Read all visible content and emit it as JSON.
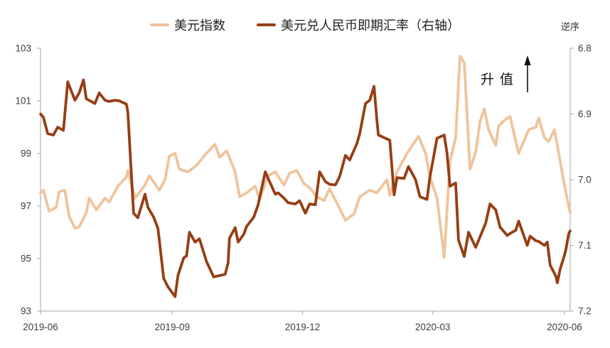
{
  "legend": {
    "items": [
      {
        "id": "usd-index",
        "label": "美元指数",
        "color": "#EFC49C"
      },
      {
        "id": "usdcny",
        "label": "美元兑人民币即期汇率（右轴）",
        "color": "#963E14"
      }
    ]
  },
  "annotations": {
    "reverse_axis_note": "逆序",
    "appreciation_label": "升值"
  },
  "chart_data": {
    "type": "line",
    "title": "",
    "xlabel": "",
    "ylabel_left": "",
    "ylabel_right": "",
    "grid": false,
    "legend_position": "top-center",
    "left_axis": {
      "range": [
        93,
        103
      ],
      "ticks": [
        "103",
        "101",
        "99",
        "97",
        "95",
        "93"
      ],
      "tick_values": [
        103,
        101,
        99,
        97,
        95,
        93
      ]
    },
    "right_axis": {
      "range": [
        6.8,
        7.2
      ],
      "reversed": true,
      "ticks": [
        "6.8",
        "6.9",
        "7.0",
        "7.1",
        "7.2"
      ],
      "tick_values": [
        6.8,
        6.9,
        7.0,
        7.1,
        7.2
      ]
    },
    "x_axis": {
      "domain": [
        "2019-06-01",
        "2020-06-05"
      ],
      "tick_labels": [
        "2019-06",
        "2019-09",
        "2019-12",
        "2020-03",
        "2020-06"
      ],
      "tick_dates": [
        "2019-06-01",
        "2019-09-01",
        "2019-12-01",
        "2020-03-01",
        "2020-06-01"
      ]
    },
    "series": [
      {
        "name": "美元指数",
        "axis": "left",
        "color": "#EFC49C",
        "points": [
          [
            "2019-06-01",
            97.5
          ],
          [
            "2019-06-03",
            97.6
          ],
          [
            "2019-06-07",
            96.8
          ],
          [
            "2019-06-12",
            96.95
          ],
          [
            "2019-06-14",
            97.55
          ],
          [
            "2019-06-18",
            97.6
          ],
          [
            "2019-06-21",
            96.6
          ],
          [
            "2019-06-25",
            96.15
          ],
          [
            "2019-06-28",
            96.2
          ],
          [
            "2019-07-03",
            96.75
          ],
          [
            "2019-07-05",
            97.3
          ],
          [
            "2019-07-10",
            96.85
          ],
          [
            "2019-07-16",
            97.3
          ],
          [
            "2019-07-19",
            97.15
          ],
          [
            "2019-07-25",
            97.75
          ],
          [
            "2019-07-31",
            98.1
          ],
          [
            "2019-08-01",
            98.35
          ],
          [
            "2019-08-06",
            97.3
          ],
          [
            "2019-08-09",
            97.5
          ],
          [
            "2019-08-13",
            97.8
          ],
          [
            "2019-08-16",
            98.15
          ],
          [
            "2019-08-23",
            97.6
          ],
          [
            "2019-08-27",
            98.0
          ],
          [
            "2019-08-30",
            98.9
          ],
          [
            "2019-09-03",
            99.0
          ],
          [
            "2019-09-06",
            98.4
          ],
          [
            "2019-09-12",
            98.3
          ],
          [
            "2019-09-18",
            98.55
          ],
          [
            "2019-09-24",
            98.95
          ],
          [
            "2019-10-01",
            99.35
          ],
          [
            "2019-10-04",
            98.85
          ],
          [
            "2019-10-09",
            99.1
          ],
          [
            "2019-10-15",
            98.3
          ],
          [
            "2019-10-18",
            97.35
          ],
          [
            "2019-10-23",
            97.5
          ],
          [
            "2019-10-29",
            97.75
          ],
          [
            "2019-11-01",
            97.25
          ],
          [
            "2019-11-07",
            98.15
          ],
          [
            "2019-11-12",
            98.3
          ],
          [
            "2019-11-18",
            97.8
          ],
          [
            "2019-11-22",
            98.25
          ],
          [
            "2019-11-27",
            98.35
          ],
          [
            "2019-12-02",
            97.85
          ],
          [
            "2019-12-06",
            97.7
          ],
          [
            "2019-12-11",
            97.35
          ],
          [
            "2019-12-16",
            97.2
          ],
          [
            "2019-12-20",
            97.65
          ],
          [
            "2019-12-27",
            96.9
          ],
          [
            "2019-12-31",
            96.45
          ],
          [
            "2020-01-06",
            96.7
          ],
          [
            "2020-01-10",
            97.35
          ],
          [
            "2020-01-17",
            97.6
          ],
          [
            "2020-01-22",
            97.5
          ],
          [
            "2020-01-29",
            98.0
          ],
          [
            "2020-01-31",
            97.4
          ],
          [
            "2020-02-05",
            98.3
          ],
          [
            "2020-02-12",
            99.0
          ],
          [
            "2020-02-20",
            99.65
          ],
          [
            "2020-02-25",
            99.0
          ],
          [
            "2020-02-28",
            98.1
          ],
          [
            "2020-03-04",
            97.3
          ],
          [
            "2020-03-09",
            95.05
          ],
          [
            "2020-03-13",
            98.7
          ],
          [
            "2020-03-17",
            99.6
          ],
          [
            "2020-03-20",
            102.7
          ],
          [
            "2020-03-23",
            102.45
          ],
          [
            "2020-03-27",
            98.4
          ],
          [
            "2020-03-31",
            99.05
          ],
          [
            "2020-04-03",
            100.2
          ],
          [
            "2020-04-06",
            100.7
          ],
          [
            "2020-04-09",
            99.9
          ],
          [
            "2020-04-14",
            99.3
          ],
          [
            "2020-04-16",
            100.05
          ],
          [
            "2020-04-21",
            100.3
          ],
          [
            "2020-04-24",
            100.4
          ],
          [
            "2020-04-30",
            99.0
          ],
          [
            "2020-05-07",
            99.9
          ],
          [
            "2020-05-12",
            100.0
          ],
          [
            "2020-05-14",
            100.35
          ],
          [
            "2020-05-18",
            99.6
          ],
          [
            "2020-05-21",
            99.45
          ],
          [
            "2020-05-25",
            99.9
          ],
          [
            "2020-05-28",
            99.0
          ],
          [
            "2020-06-01",
            97.8
          ],
          [
            "2020-06-03",
            97.25
          ],
          [
            "2020-06-05",
            96.75
          ]
        ]
      },
      {
        "name": "美元兑人民币即期汇率（右轴）",
        "axis": "right",
        "color": "#963E14",
        "points": [
          [
            "2019-06-01",
            6.9
          ],
          [
            "2019-06-03",
            6.905
          ],
          [
            "2019-06-06",
            6.93
          ],
          [
            "2019-06-10",
            6.932
          ],
          [
            "2019-06-13",
            6.92
          ],
          [
            "2019-06-17",
            6.925
          ],
          [
            "2019-06-20",
            6.851
          ],
          [
            "2019-06-25",
            6.879
          ],
          [
            "2019-06-28",
            6.868
          ],
          [
            "2019-07-01",
            6.848
          ],
          [
            "2019-07-03",
            6.877
          ],
          [
            "2019-07-09",
            6.884
          ],
          [
            "2019-07-12",
            6.868
          ],
          [
            "2019-07-16",
            6.879
          ],
          [
            "2019-07-19",
            6.881
          ],
          [
            "2019-07-23",
            6.879
          ],
          [
            "2019-07-26",
            6.88
          ],
          [
            "2019-07-31",
            6.885
          ],
          [
            "2019-08-01",
            6.897
          ],
          [
            "2019-08-05",
            7.051
          ],
          [
            "2019-08-08",
            7.058
          ],
          [
            "2019-08-13",
            7.022
          ],
          [
            "2019-08-15",
            7.042
          ],
          [
            "2019-08-19",
            7.057
          ],
          [
            "2019-08-22",
            7.074
          ],
          [
            "2019-08-23",
            7.092
          ],
          [
            "2019-08-26",
            7.15
          ],
          [
            "2019-08-29",
            7.163
          ],
          [
            "2019-09-03",
            7.178
          ],
          [
            "2019-09-05",
            7.146
          ],
          [
            "2019-09-09",
            7.119
          ],
          [
            "2019-09-11",
            7.116
          ],
          [
            "2019-09-13",
            7.08
          ],
          [
            "2019-09-17",
            7.095
          ],
          [
            "2019-09-20",
            7.09
          ],
          [
            "2019-09-25",
            7.125
          ],
          [
            "2019-09-30",
            7.148
          ],
          [
            "2019-10-08",
            7.144
          ],
          [
            "2019-10-10",
            7.127
          ],
          [
            "2019-10-11",
            7.089
          ],
          [
            "2019-10-15",
            7.073
          ],
          [
            "2019-10-17",
            7.095
          ],
          [
            "2019-10-21",
            7.083
          ],
          [
            "2019-10-23",
            7.071
          ],
          [
            "2019-10-28",
            7.057
          ],
          [
            "2019-10-31",
            7.038
          ],
          [
            "2019-11-05",
            6.988
          ],
          [
            "2019-11-07",
            6.998
          ],
          [
            "2019-11-12",
            7.022
          ],
          [
            "2019-11-14",
            7.02
          ],
          [
            "2019-11-18",
            7.028
          ],
          [
            "2019-11-21",
            7.035
          ],
          [
            "2019-11-26",
            7.037
          ],
          [
            "2019-11-29",
            7.032
          ],
          [
            "2019-12-03",
            7.051
          ],
          [
            "2019-12-06",
            7.037
          ],
          [
            "2019-12-10",
            7.038
          ],
          [
            "2019-12-13",
            6.988
          ],
          [
            "2019-12-17",
            7.003
          ],
          [
            "2019-12-20",
            7.007
          ],
          [
            "2019-12-24",
            7.008
          ],
          [
            "2019-12-27",
            6.995
          ],
          [
            "2019-12-31",
            6.963
          ],
          [
            "2020-01-03",
            6.97
          ],
          [
            "2020-01-08",
            6.945
          ],
          [
            "2020-01-10",
            6.93
          ],
          [
            "2020-01-14",
            6.884
          ],
          [
            "2020-01-17",
            6.879
          ],
          [
            "2020-01-20",
            6.858
          ],
          [
            "2020-01-22",
            6.91
          ],
          [
            "2020-01-23",
            6.932
          ],
          [
            "2020-01-31",
            6.94
          ],
          [
            "2020-02-03",
            7.023
          ],
          [
            "2020-02-05",
            6.997
          ],
          [
            "2020-02-10",
            6.998
          ],
          [
            "2020-02-13",
            6.98
          ],
          [
            "2020-02-18",
            7.0
          ],
          [
            "2020-02-21",
            7.026
          ],
          [
            "2020-02-26",
            7.03
          ],
          [
            "2020-02-28",
            6.996
          ],
          [
            "2020-03-04",
            6.937
          ],
          [
            "2020-03-09",
            6.932
          ],
          [
            "2020-03-11",
            6.96
          ],
          [
            "2020-03-13",
            7.01
          ],
          [
            "2020-03-17",
            7.005
          ],
          [
            "2020-03-19",
            7.092
          ],
          [
            "2020-03-23",
            7.117
          ],
          [
            "2020-03-26",
            7.08
          ],
          [
            "2020-03-31",
            7.103
          ],
          [
            "2020-04-07",
            7.066
          ],
          [
            "2020-04-10",
            7.037
          ],
          [
            "2020-04-14",
            7.046
          ],
          [
            "2020-04-17",
            7.072
          ],
          [
            "2020-04-22",
            7.085
          ],
          [
            "2020-04-24",
            7.082
          ],
          [
            "2020-04-28",
            7.077
          ],
          [
            "2020-04-30",
            7.063
          ],
          [
            "2020-05-06",
            7.1
          ],
          [
            "2020-05-08",
            7.086
          ],
          [
            "2020-05-12",
            7.093
          ],
          [
            "2020-05-14",
            7.094
          ],
          [
            "2020-05-18",
            7.1
          ],
          [
            "2020-05-20",
            7.095
          ],
          [
            "2020-05-22",
            7.13
          ],
          [
            "2020-05-26",
            7.147
          ],
          [
            "2020-05-27",
            7.157
          ],
          [
            "2020-05-29",
            7.136
          ],
          [
            "2020-06-01",
            7.115
          ],
          [
            "2020-06-02",
            7.106
          ],
          [
            "2020-06-04",
            7.082
          ],
          [
            "2020-06-05",
            7.078
          ]
        ]
      }
    ],
    "style": {
      "axis_color": "#a6a6a6",
      "tick_label_color": "#3c3c3c",
      "line_width": 3.8
    }
  }
}
